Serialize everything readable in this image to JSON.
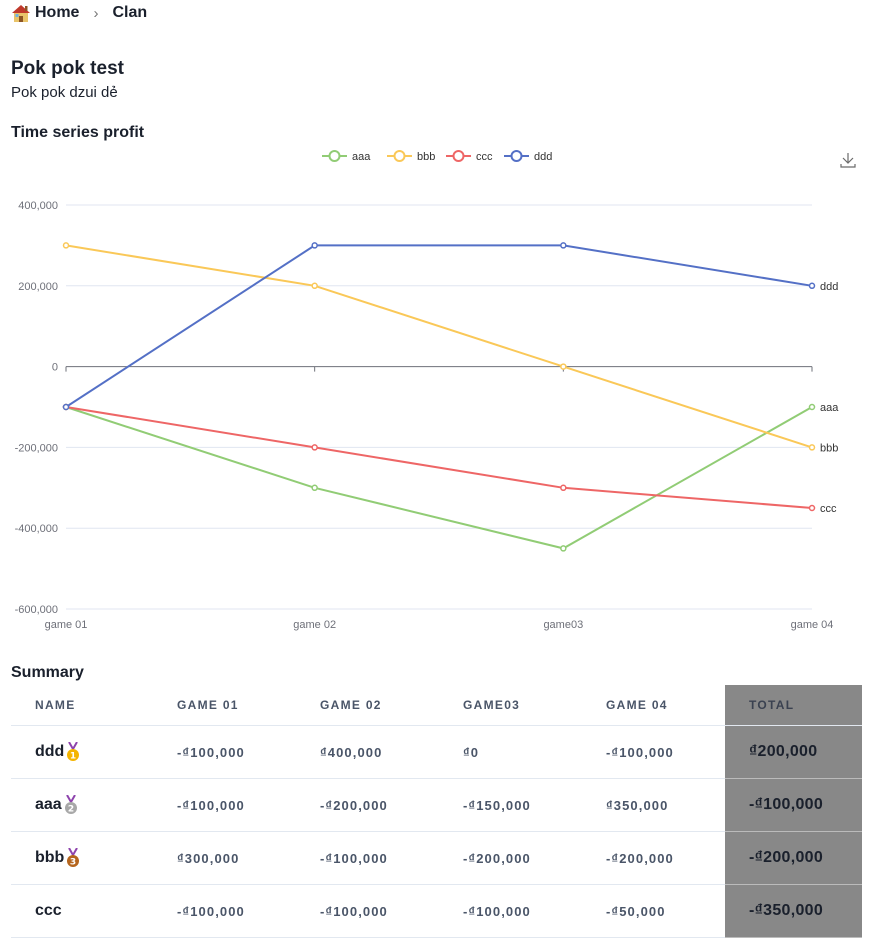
{
  "breadcrumb": {
    "home": "Home",
    "current": "Clan"
  },
  "page": {
    "title": "Pok pok test",
    "subtitle": "Pok pok dzui dẻ"
  },
  "chart_section": {
    "title": "Time series profit"
  },
  "chart_data": {
    "type": "line",
    "title": "Time series profit",
    "categories": [
      "game 01",
      "game 02",
      "game03",
      "game 04"
    ],
    "series": [
      {
        "name": "aaa",
        "color": "#91cc75",
        "values": [
          -100000,
          -300000,
          -450000,
          -100000
        ]
      },
      {
        "name": "bbb",
        "color": "#fac858",
        "values": [
          300000,
          200000,
          0,
          -200000
        ]
      },
      {
        "name": "ccc",
        "color": "#ee6666",
        "values": [
          -100000,
          -200000,
          -300000,
          -350000
        ]
      },
      {
        "name": "ddd",
        "color": "#5470c6",
        "values": [
          -100000,
          300000,
          300000,
          200000
        ]
      }
    ],
    "ylim": [
      -600000,
      400000
    ],
    "yticks": [
      400000,
      200000,
      0,
      -200000,
      -400000,
      -600000
    ],
    "ytick_labels": [
      "400,000",
      "200,000",
      "0",
      "-200,000",
      "-400,000",
      "-600,000"
    ],
    "legend": "top-center",
    "grid": true,
    "end_labels": true,
    "toolbox": "download-icon"
  },
  "summary": {
    "title": "Summary",
    "headers": [
      "NAME",
      "GAME 01",
      "GAME 02",
      "GAME03",
      "GAME 04",
      "TOTAL"
    ],
    "rows": [
      {
        "name": "ddd",
        "medal": "gold",
        "cells": [
          "-₫100,000",
          "₫400,000",
          "₫0",
          "-₫100,000"
        ],
        "total": "₫200,000"
      },
      {
        "name": "aaa",
        "medal": "silver",
        "cells": [
          "-₫100,000",
          "-₫200,000",
          "-₫150,000",
          "₫350,000"
        ],
        "total": "-₫100,000"
      },
      {
        "name": "bbb",
        "medal": "bronze",
        "cells": [
          "₫300,000",
          "-₫100,000",
          "-₫200,000",
          "-₫200,000"
        ],
        "total": "-₫200,000"
      },
      {
        "name": "ccc",
        "medal": "",
        "cells": [
          "-₫100,000",
          "-₫100,000",
          "-₫100,000",
          "-₫50,000"
        ],
        "total": "-₫350,000"
      }
    ]
  }
}
